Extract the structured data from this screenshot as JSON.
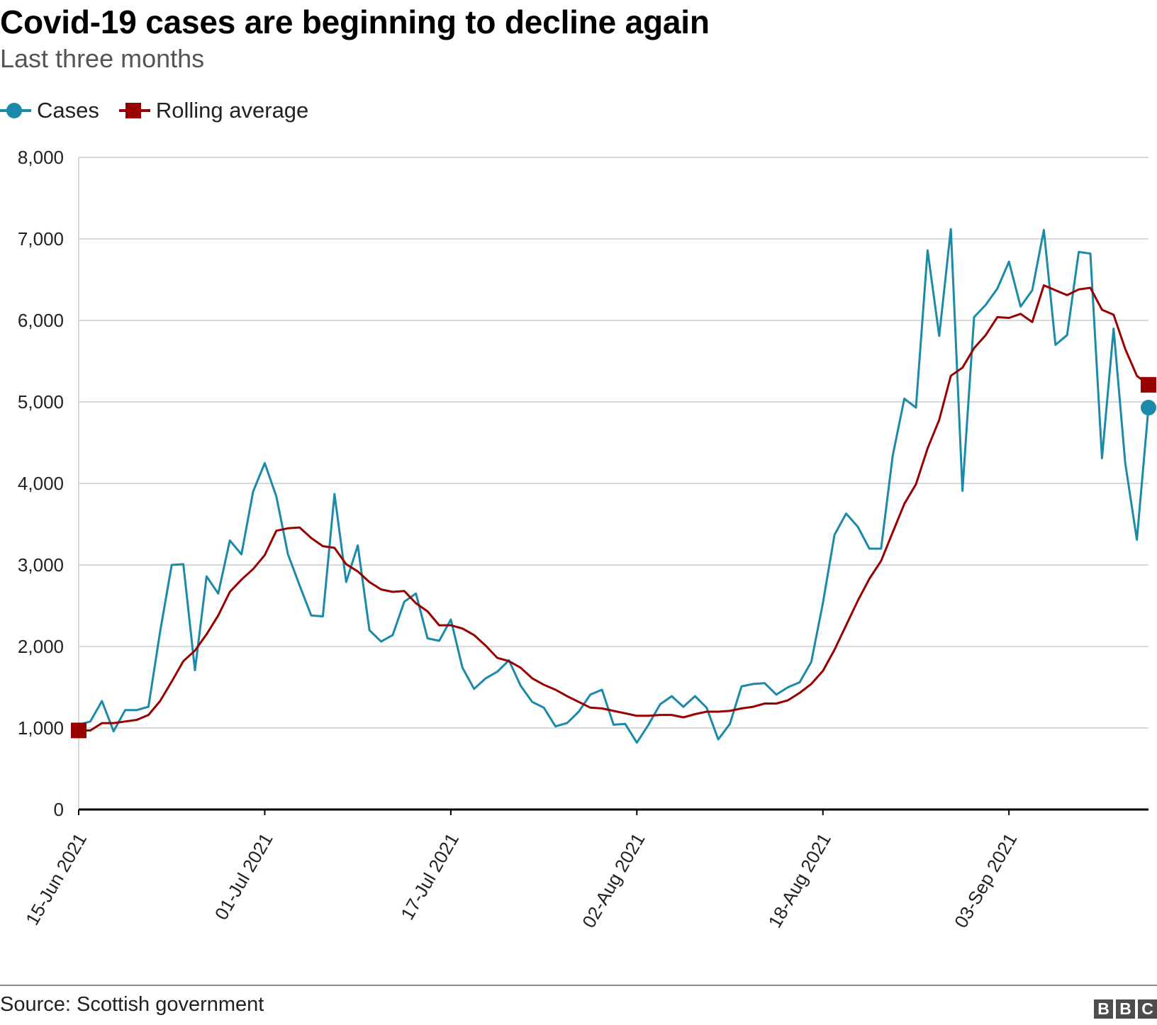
{
  "header": {
    "title": "Covid-19 cases are beginning to decline again",
    "subtitle": "Last three months"
  },
  "legend": {
    "cases_label": "Cases",
    "rolling_label": "Rolling average"
  },
  "footer": {
    "source": "Source: Scottish government",
    "logo_letters": [
      "B",
      "B",
      "C"
    ]
  },
  "colors": {
    "cases": "#1b8aa8",
    "rolling": "#990000",
    "grid": "#d9d9d9",
    "axis": "#000000"
  },
  "chart_data": {
    "type": "line",
    "title": "Covid-19 cases are beginning to decline again",
    "subtitle": "Last three months",
    "xlabel": "",
    "ylabel": "",
    "ylim": [
      0,
      8000
    ],
    "yticks": [
      0,
      1000,
      2000,
      3000,
      4000,
      5000,
      6000,
      7000,
      8000
    ],
    "ytick_labels": [
      "0",
      "1,000",
      "2,000",
      "3,000",
      "4,000",
      "5,000",
      "6,000",
      "7,000",
      "8,000"
    ],
    "x_start": "15-Jun 2021",
    "xtick_indices": [
      0,
      16,
      32,
      48,
      64,
      80
    ],
    "xtick_labels": [
      "15-Jun 2021",
      "01-Jul 2021",
      "17-Jul 2021",
      "02-Aug 2021",
      "18-Aug 2021",
      "03-Sep 2021"
    ],
    "grid": true,
    "legend_position": "top-left",
    "series": [
      {
        "name": "Cases",
        "values": [
          1040,
          1080,
          1330,
          960,
          1220,
          1220,
          1260,
          2180,
          3000,
          3010,
          1710,
          2860,
          2650,
          3300,
          3130,
          3900,
          4250,
          3840,
          3130,
          2750,
          2380,
          2370,
          3870,
          2790,
          3240,
          2200,
          2060,
          2140,
          2550,
          2650,
          2100,
          2070,
          2330,
          1740,
          1480,
          1610,
          1690,
          1830,
          1520,
          1320,
          1250,
          1020,
          1060,
          1200,
          1410,
          1470,
          1040,
          1050,
          820,
          1040,
          1290,
          1390,
          1260,
          1390,
          1250,
          860,
          1050,
          1510,
          1540,
          1550,
          1410,
          1500,
          1560,
          1810,
          2530,
          3370,
          3630,
          3470,
          3200,
          3200,
          4340,
          5040,
          4930,
          6860,
          5810,
          7120,
          3910,
          6040,
          6190,
          6390,
          6720,
          6170,
          6370,
          7110,
          5700,
          5820,
          6840,
          6820,
          4310,
          5900,
          4250,
          3310,
          4930
        ]
      },
      {
        "name": "Rolling average",
        "values": [
          970,
          970,
          1060,
          1060,
          1080,
          1100,
          1160,
          1330,
          1570,
          1820,
          1950,
          2150,
          2380,
          2670,
          2820,
          2950,
          3120,
          3420,
          3450,
          3460,
          3330,
          3230,
          3210,
          3010,
          2920,
          2790,
          2700,
          2670,
          2680,
          2530,
          2430,
          2260,
          2260,
          2220,
          2140,
          2010,
          1860,
          1820,
          1740,
          1610,
          1530,
          1470,
          1390,
          1320,
          1250,
          1240,
          1210,
          1180,
          1150,
          1150,
          1160,
          1160,
          1130,
          1170,
          1200,
          1200,
          1210,
          1240,
          1260,
          1300,
          1300,
          1340,
          1430,
          1540,
          1700,
          1960,
          2260,
          2560,
          2830,
          3050,
          3400,
          3750,
          3990,
          4430,
          4780,
          5320,
          5420,
          5660,
          5820,
          6040,
          6030,
          6080,
          5980,
          6430,
          6370,
          6310,
          6380,
          6400,
          6130,
          6070,
          5650,
          5320,
          5210
        ]
      }
    ],
    "end_markers": {
      "cases_last": 4930,
      "rolling_first": 970,
      "rolling_last": 5210
    }
  }
}
